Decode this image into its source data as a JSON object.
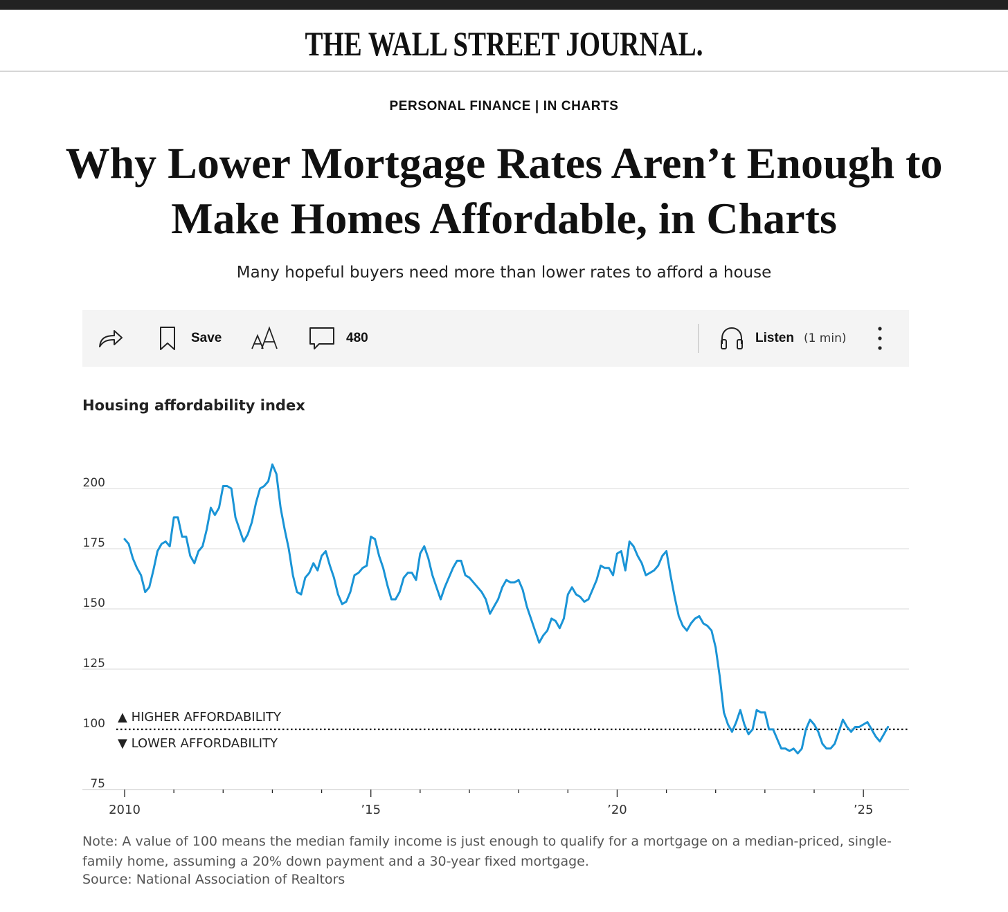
{
  "site": {
    "logo": "THE WALL STREET JOURNAL."
  },
  "article": {
    "section": "PERSONAL FINANCE",
    "separator": " | ",
    "subsection": "IN CHARTS",
    "headline_line1": "Why Lower Mortgage Rates Aren’t Enough to",
    "headline_line2": "Make Homes Affordable, in Charts",
    "dek": "Many hopeful buyers need more than lower rates to afford a house"
  },
  "toolbar": {
    "save_label": "Save",
    "comment_count": "480",
    "listen_label": "Listen",
    "listen_duration": "(1 min)",
    "icons": [
      "share-icon",
      "bookmark-icon",
      "text-size-icon",
      "comment-icon",
      "headphones-icon",
      "more-icon"
    ]
  },
  "chart_data": {
    "type": "line",
    "title": "Housing affordability index",
    "xlabel": "",
    "ylabel": "",
    "x_ticks": [
      "2010",
      "’15",
      "’20",
      "’25"
    ],
    "x_tick_years": [
      2010,
      2015,
      2020,
      2025
    ],
    "xlim": [
      2010,
      2025.75
    ],
    "y_ticks": [
      75,
      100,
      125,
      150,
      175,
      200
    ],
    "ylim": [
      75,
      215
    ],
    "reference_line": 100,
    "annotation_above": "▲ HIGHER AFFORDABILITY",
    "annotation_below": "▼ LOWER AFFORDABILITY",
    "color": "#1a94d6",
    "grid": true,
    "series": [
      {
        "x": [
          2010.0,
          2010.083,
          2010.167,
          2010.25,
          2010.333,
          2010.417,
          2010.5,
          2010.583,
          2010.667,
          2010.75,
          2010.833,
          2010.917,
          2011.0,
          2011.083,
          2011.167,
          2011.25,
          2011.333,
          2011.417,
          2011.5,
          2011.583,
          2011.667,
          2011.75,
          2011.833,
          2011.917,
          2012.0,
          2012.083,
          2012.167,
          2012.25,
          2012.333,
          2012.417,
          2012.5,
          2012.583,
          2012.667,
          2012.75,
          2012.833,
          2012.917,
          2013.0,
          2013.083,
          2013.167,
          2013.25,
          2013.333,
          2013.417,
          2013.5,
          2013.583,
          2013.667,
          2013.75,
          2013.833,
          2013.917,
          2014.0,
          2014.083,
          2014.167,
          2014.25,
          2014.333,
          2014.417,
          2014.5,
          2014.583,
          2014.667,
          2014.75,
          2014.833,
          2014.917,
          2015.0,
          2015.083,
          2015.167,
          2015.25,
          2015.333,
          2015.417,
          2015.5,
          2015.583,
          2015.667,
          2015.75,
          2015.833,
          2015.917,
          2016.0,
          2016.083,
          2016.167,
          2016.25,
          2016.333,
          2016.417,
          2016.5,
          2016.583,
          2016.667,
          2016.75,
          2016.833,
          2016.917,
          2017.0,
          2017.083,
          2017.167,
          2017.25,
          2017.333,
          2017.417,
          2017.5,
          2017.583,
          2017.667,
          2017.75,
          2017.833,
          2017.917,
          2018.0,
          2018.083,
          2018.167,
          2018.25,
          2018.333,
          2018.417,
          2018.5,
          2018.583,
          2018.667,
          2018.75,
          2018.833,
          2018.917,
          2019.0,
          2019.083,
          2019.167,
          2019.25,
          2019.333,
          2019.417,
          2019.5,
          2019.583,
          2019.667,
          2019.75,
          2019.833,
          2019.917,
          2020.0,
          2020.083,
          2020.167,
          2020.25,
          2020.333,
          2020.417,
          2020.5,
          2020.583,
          2020.667,
          2020.75,
          2020.833,
          2020.917,
          2021.0,
          2021.083,
          2021.167,
          2021.25,
          2021.333,
          2021.417,
          2021.5,
          2021.583,
          2021.667,
          2021.75,
          2021.833,
          2021.917,
          2022.0,
          2022.083,
          2022.167,
          2022.25,
          2022.333,
          2022.417,
          2022.5,
          2022.583,
          2022.667,
          2022.75,
          2022.833,
          2022.917,
          2023.0,
          2023.083,
          2023.167,
          2023.25,
          2023.333,
          2023.417,
          2023.5,
          2023.583,
          2023.667,
          2023.75,
          2023.833,
          2023.917,
          2024.0,
          2024.083,
          2024.167,
          2024.25,
          2024.333,
          2024.417,
          2024.5,
          2024.583,
          2024.667,
          2024.75,
          2024.833,
          2024.917,
          2025.0,
          2025.083,
          2025.167,
          2025.25,
          2025.333,
          2025.417,
          2025.5
        ],
        "values": [
          179,
          177,
          171,
          167,
          164,
          157,
          159,
          166,
          174,
          177,
          178,
          176,
          188,
          188,
          180,
          180,
          172,
          169,
          174,
          176,
          183,
          192,
          189,
          192,
          201,
          201,
          200,
          188,
          183,
          178,
          181,
          186,
          194,
          200,
          201,
          203,
          210,
          206,
          192,
          183,
          175,
          164,
          157,
          156,
          163,
          165,
          169,
          166,
          172,
          174,
          168,
          163,
          156,
          152,
          153,
          157,
          164,
          165,
          167,
          168,
          180,
          179,
          172,
          167,
          160,
          154,
          154,
          157,
          163,
          165,
          165,
          162,
          173,
          176,
          171,
          164,
          159,
          154,
          159,
          163,
          167,
          170,
          170,
          164,
          163,
          161,
          159,
          157,
          154,
          148,
          151,
          154,
          159,
          162,
          161,
          161,
          162,
          158,
          151,
          146,
          141,
          136,
          139,
          141,
          146,
          145,
          142,
          146,
          156,
          159,
          156,
          155,
          153,
          154,
          158,
          162,
          168,
          167,
          167,
          164,
          173,
          174,
          166,
          178,
          176,
          172,
          169,
          164,
          165,
          166,
          168,
          172,
          174,
          164,
          155,
          147,
          143,
          141,
          144,
          146,
          147,
          144,
          143,
          141,
          134,
          122,
          107,
          102,
          99,
          103,
          108,
          102,
          98,
          100,
          108,
          107,
          107,
          100,
          100,
          96,
          92,
          92,
          91,
          92,
          90,
          92,
          100,
          104,
          102,
          99,
          94,
          92,
          92,
          94,
          99,
          104,
          101,
          99,
          101,
          101,
          102,
          103,
          100,
          97,
          95,
          98,
          101
        ]
      }
    ]
  },
  "footer": {
    "note": "Note: A value of 100 means the median family income is just enough to qualify for a mortgage on a median-priced, single-family home, assuming a 20% down payment and a 30-year fixed mortgage.",
    "source": "Source: National Association of Realtors"
  }
}
